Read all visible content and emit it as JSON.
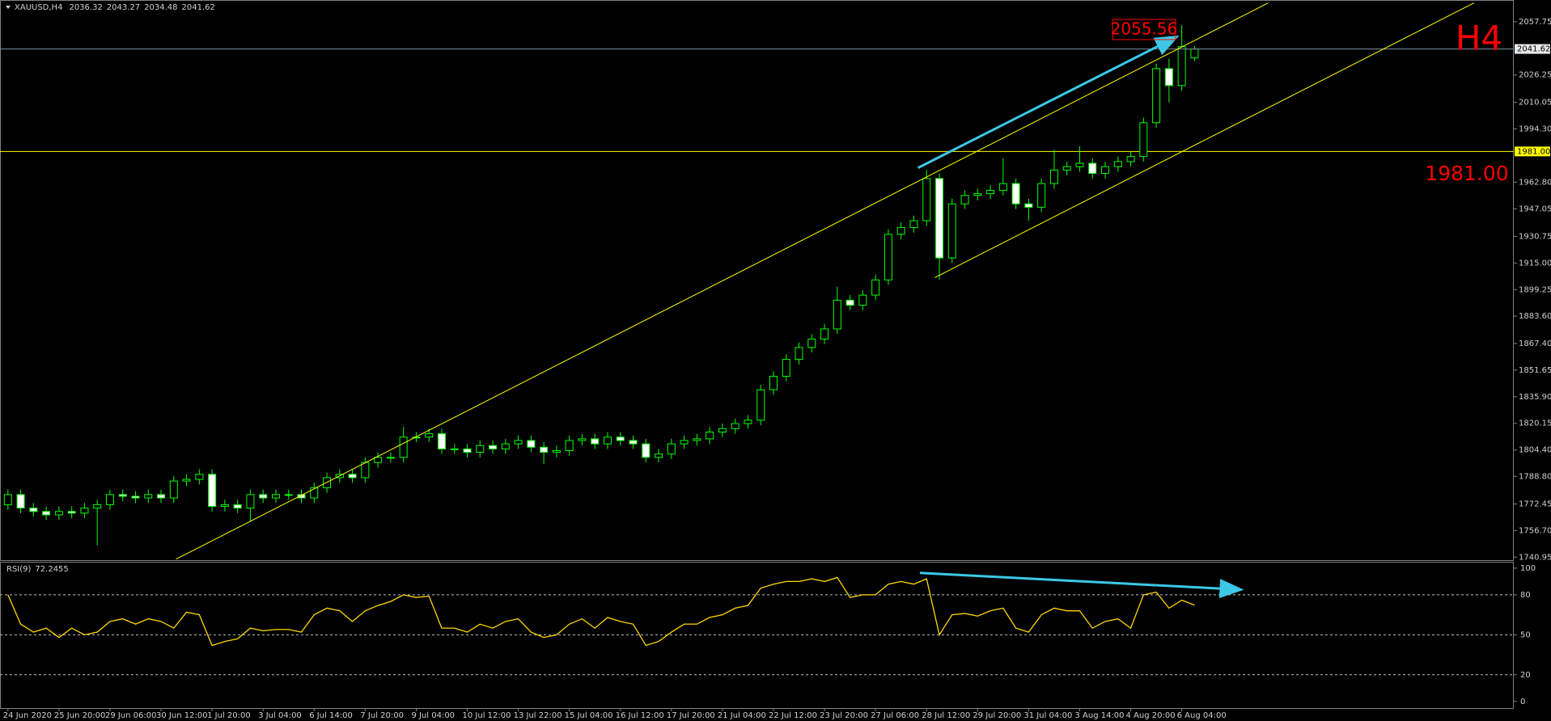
{
  "chart_data": [
    {
      "type": "candlestick",
      "symbol": "XAUUSD,H4",
      "period_label": "H4",
      "up_color": "#000000",
      "down_color": "#ffffff",
      "wick_color": "#00ff00",
      "categories": [
        "24 Jun 2020",
        null,
        null,
        null,
        "25 Jun 20:00",
        null,
        null,
        null,
        "29 Jun 06:00",
        null,
        null,
        null,
        "30 Jun 12:00",
        null,
        null,
        null,
        "1 Jul 20:00",
        null,
        null,
        null,
        "3 Jul 04:00",
        null,
        null,
        null,
        "6 Jul 14:00",
        null,
        null,
        null,
        "7 Jul 20:00",
        null,
        null,
        null,
        "9 Jul 04:00",
        null,
        null,
        null,
        "10 Jul 12:00",
        null,
        null,
        null,
        "13 Jul 22:00",
        null,
        null,
        null,
        "15 Jul 04:00",
        null,
        null,
        null,
        "16 Jul 12:00",
        null,
        null,
        null,
        "17 Jul 20:00",
        null,
        null,
        null,
        "21 Jul 04:00",
        null,
        null,
        null,
        "22 Jul 12:00",
        null,
        null,
        null,
        "23 Jul 20:00",
        null,
        null,
        null,
        "27 Jul 06:00",
        null,
        null,
        null,
        "28 Jul 12:00",
        null,
        null,
        null,
        "29 Jul 20:00",
        null,
        null,
        null,
        "31 Jul 04:00",
        null,
        null,
        null,
        "3 Aug 14:00",
        null,
        null,
        null,
        "4 Aug 20:00",
        null,
        null,
        null,
        "6 Aug 04:00",
        null
      ],
      "open": [
        1772,
        1778,
        1770,
        1768,
        1766,
        1768,
        1767,
        1770,
        1772,
        1778,
        1777,
        1776,
        1778,
        1776,
        1786,
        1787,
        1790,
        1771,
        1772,
        1770,
        1778,
        1776,
        1778,
        1778,
        1776,
        1782,
        1788,
        1790,
        1788,
        1797,
        1800,
        1800,
        1812,
        1812,
        1814,
        1805,
        1805,
        1803,
        1807,
        1805,
        1808,
        1810,
        1806,
        1803,
        1804,
        1810,
        1811,
        1808,
        1812,
        1810,
        1808,
        1800,
        1802,
        1808,
        1810,
        1811,
        1815,
        1817,
        1820,
        1822,
        1840,
        1848,
        1858,
        1865,
        1870,
        1876,
        1893,
        1890,
        1896,
        1905,
        1932,
        1936,
        1940,
        1965,
        1918,
        1950,
        1955,
        1956,
        1958,
        1962,
        1950,
        1948,
        1962,
        1970,
        1972,
        1974,
        1968,
        1972,
        1975,
        1978,
        1998,
        2030,
        2020,
        2036.32
      ],
      "high": [
        1781,
        1781,
        1773,
        1771,
        1771,
        1771,
        1773,
        1775,
        1781,
        1781,
        1780,
        1781,
        1781,
        1789,
        1790,
        1793,
        1793,
        1775,
        1775,
        1781,
        1781,
        1781,
        1781,
        1781,
        1785,
        1791,
        1793,
        1793,
        1800,
        1803,
        1803,
        1818,
        1815,
        1817,
        1817,
        1808,
        1808,
        1810,
        1810,
        1811,
        1813,
        1813,
        1809,
        1807,
        1813,
        1814,
        1814,
        1815,
        1815,
        1813,
        1811,
        1805,
        1811,
        1813,
        1814,
        1818,
        1820,
        1823,
        1825,
        1843,
        1851,
        1861,
        1868,
        1873,
        1879,
        1901,
        1896,
        1899,
        1908,
        1935,
        1939,
        1943,
        1970,
        1968,
        1953,
        1958,
        1959,
        1961,
        1977,
        1965,
        1953,
        1965,
        1982,
        1975,
        1984,
        1977,
        1975,
        1978,
        1981,
        2001,
        2033,
        2036,
        2055.56,
        2043.27
      ],
      "low": [
        1769,
        1767,
        1765,
        1763,
        1763,
        1764,
        1764,
        1748,
        1769,
        1774,
        1773,
        1773,
        1773,
        1773,
        1783,
        1784,
        1768,
        1768,
        1767,
        1762,
        1773,
        1773,
        1775,
        1773,
        1773,
        1779,
        1785,
        1785,
        1785,
        1794,
        1797,
        1797,
        1809,
        1809,
        1802,
        1802,
        1800,
        1800,
        1802,
        1802,
        1805,
        1803,
        1796,
        1800,
        1801,
        1807,
        1805,
        1805,
        1807,
        1805,
        1797,
        1797,
        1799,
        1805,
        1807,
        1808,
        1812,
        1814,
        1817,
        1819,
        1837,
        1845,
        1855,
        1862,
        1867,
        1873,
        1887,
        1887,
        1893,
        1902,
        1929,
        1933,
        1937,
        1905,
        1915,
        1947,
        1952,
        1953,
        1955,
        1947,
        1940,
        1945,
        1959,
        1967,
        1969,
        1965,
        1965,
        1969,
        1972,
        1975,
        1995,
        2010,
        2017,
        2034.48
      ],
      "close": [
        1778,
        1770,
        1768,
        1766,
        1768,
        1767,
        1770,
        1772,
        1778,
        1777,
        1776,
        1778,
        1776,
        1786,
        1787,
        1790,
        1771,
        1772,
        1770,
        1778,
        1776,
        1778,
        1778,
        1776,
        1782,
        1788,
        1790,
        1788,
        1797,
        1800,
        1800,
        1812,
        1812,
        1814,
        1805,
        1805,
        1803,
        1807,
        1805,
        1808,
        1810,
        1806,
        1803,
        1804,
        1810,
        1811,
        1808,
        1812,
        1810,
        1808,
        1800,
        1802,
        1808,
        1810,
        1811,
        1815,
        1817,
        1820,
        1822,
        1840,
        1848,
        1858,
        1865,
        1870,
        1876,
        1893,
        1890,
        1896,
        1905,
        1932,
        1936,
        1940,
        1965,
        1918,
        1950,
        1955,
        1956,
        1958,
        1962,
        1950,
        1948,
        1962,
        1970,
        1972,
        1974,
        1968,
        1972,
        1975,
        1978,
        1998,
        2030,
        2020,
        2043,
        2041.62
      ],
      "ylim": [
        1739.2,
        2070.6
      ],
      "yticks": [
        2057.75,
        2026.25,
        2010.05,
        {
          "value": 1994.3,
          "label": "1994.30"
        },
        {
          "value": 1962.8,
          "label": "1962.80"
        },
        1947.05,
        1930.75,
        {
          "value": 1915,
          "label": "1915.00"
        },
        1899.25,
        {
          "value": 1883.6,
          "label": "1883.60"
        },
        {
          "value": 1867.4,
          "label": "1867.40"
        },
        1851.65,
        {
          "value": 1835.9,
          "label": "1835.90"
        },
        1820.15,
        {
          "value": 1804.4,
          "label": "1804.40"
        },
        {
          "value": 1788.8,
          "label": "1788.80"
        },
        1772.45,
        {
          "value": 1756.7,
          "label": "1756.70"
        },
        1740.95
      ],
      "level": {
        "value": 1981,
        "label": "1981.00"
      },
      "level_color": "#ffff00"
    },
    {
      "type": "line",
      "name": "RSI(9)",
      "color": "#ffd700",
      "values": [
        80,
        58,
        52,
        55,
        48,
        55,
        50,
        52,
        60,
        62,
        58,
        62,
        60,
        55,
        67,
        65,
        42,
        45,
        47,
        55,
        53,
        54,
        54,
        52,
        65,
        70,
        68,
        60,
        68,
        72,
        75,
        80,
        78,
        79,
        55,
        55,
        52,
        58,
        55,
        60,
        62,
        52,
        48,
        50,
        58,
        62,
        55,
        63,
        60,
        58,
        42,
        45,
        52,
        58,
        58,
        63,
        65,
        70,
        72,
        85,
        88,
        90,
        90,
        92,
        90,
        93,
        78,
        80,
        80,
        88,
        90,
        88,
        92,
        50,
        65,
        66,
        64,
        68,
        70,
        55,
        52,
        65,
        70,
        68,
        68,
        55,
        60,
        62,
        55,
        80,
        82,
        70,
        76,
        72.2455
      ],
      "ylim": [
        -5,
        104.8
      ],
      "yticks": [
        100,
        80,
        50,
        20,
        0
      ],
      "levels": [
        80,
        50,
        20
      ]
    }
  ]
}
